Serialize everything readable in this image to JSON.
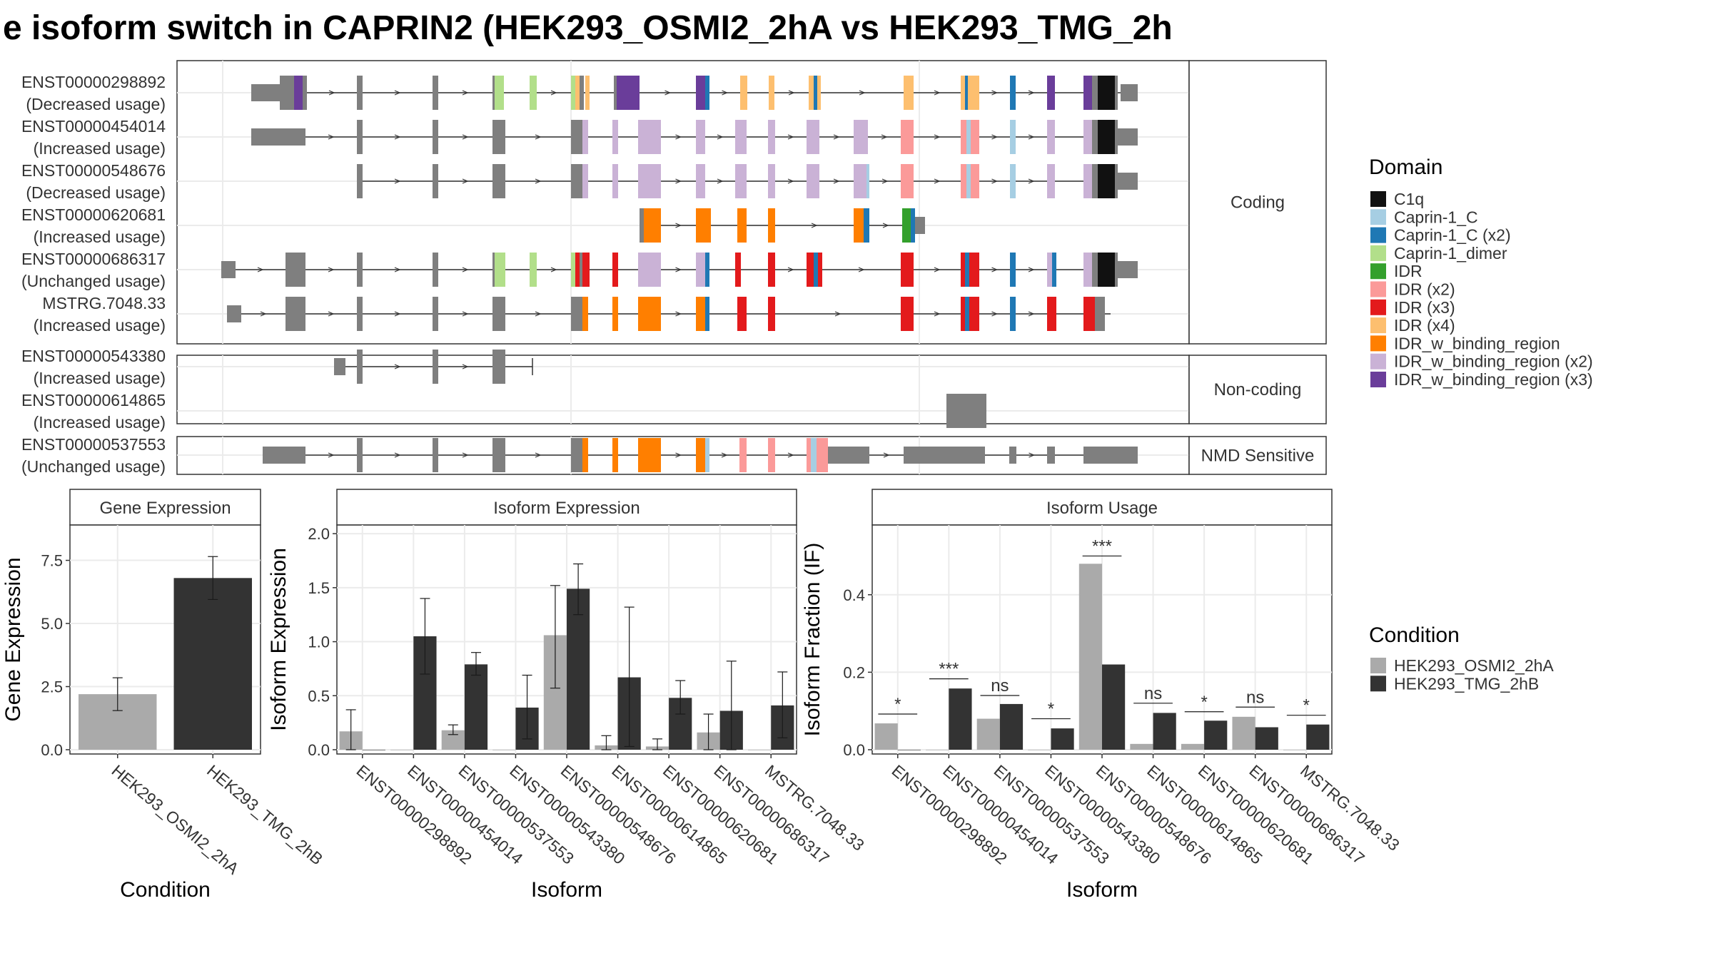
{
  "title": "e isoform switch in CAPRIN2 (HEK293_OSMI2_2hA vs HEK293_TMG_2h",
  "colors": {
    "exon_default": "#7f7f7f",
    "condition_a": "#aaaaaa",
    "condition_b": "#333333"
  },
  "gene_structure": {
    "groups": [
      {
        "label": "Coding",
        "isoforms": [
          {
            "id": "ENST00000298892",
            "usage": "(Decreased usage)"
          },
          {
            "id": "ENST00000454014",
            "usage": "(Increased usage)"
          },
          {
            "id": "ENST00000548676",
            "usage": "(Decreased usage)"
          },
          {
            "id": "ENST00000620681",
            "usage": "(Increased usage)"
          },
          {
            "id": "ENST00000686317",
            "usage": "(Unchanged usage)"
          },
          {
            "id": "MSTRG.7048.33",
            "usage": "(Increased usage)"
          }
        ]
      },
      {
        "label": "Non-coding",
        "isoforms": [
          {
            "id": "ENST00000543380",
            "usage": "(Increased usage)"
          },
          {
            "id": "ENST00000614865",
            "usage": "(Increased usage)"
          }
        ]
      },
      {
        "label": "NMD Sensitive",
        "isoforms": [
          {
            "id": "ENST00000537553",
            "usage": "(Unchanged usage)"
          }
        ]
      }
    ]
  },
  "domain_legend": {
    "title": "Domain",
    "items": [
      {
        "name": "C1q",
        "color": "#111111"
      },
      {
        "name": "Caprin-1_C",
        "color": "#a6cee3"
      },
      {
        "name": "Caprin-1_C (x2)",
        "color": "#1f78b4"
      },
      {
        "name": "Caprin-1_dimer",
        "color": "#b2df8a"
      },
      {
        "name": "IDR",
        "color": "#33a02c"
      },
      {
        "name": "IDR (x2)",
        "color": "#fb9a99"
      },
      {
        "name": "IDR (x3)",
        "color": "#e31a1c"
      },
      {
        "name": "IDR (x4)",
        "color": "#fdbf6f"
      },
      {
        "name": "IDR_w_binding_region",
        "color": "#ff7f00"
      },
      {
        "name": "IDR_w_binding_region (x2)",
        "color": "#cab2d6"
      },
      {
        "name": "IDR_w_binding_region (x3)",
        "color": "#6a3d9a"
      }
    ]
  },
  "condition_legend": {
    "title": "Condition",
    "items": [
      {
        "name": "HEK293_OSMI2_2hA",
        "color": "#aaaaaa"
      },
      {
        "name": "HEK293_TMG_2hB",
        "color": "#333333"
      }
    ]
  },
  "chart_data": [
    {
      "type": "bar",
      "panel_title": "Gene Expression",
      "xlabel": "Condition",
      "ylabel": "Gene Expression",
      "ylim": [
        0,
        8.9
      ],
      "yticks": [
        "0.0",
        "2.5",
        "5.0",
        "7.5"
      ],
      "categories": [
        "HEK293_OSMI2_2hA",
        "HEK293_TMG_2hB"
      ],
      "values": [
        2.2,
        6.8
      ],
      "error_low": [
        1.55,
        5.95
      ],
      "error_high": [
        2.85,
        7.65
      ]
    },
    {
      "type": "bar",
      "panel_title": "Isoform Expression",
      "xlabel": "Isoform",
      "ylabel": "Isoform Expression",
      "ylim": [
        0,
        2.08
      ],
      "yticks": [
        "0.0",
        "0.5",
        "1.0",
        "1.5",
        "2.0"
      ],
      "categories": [
        "ENST00000298892",
        "ENST00000454014",
        "ENST00000537553",
        "ENST00000543380",
        "ENST00000548676",
        "ENST00000614865",
        "ENST00000620681",
        "ENST00000686317",
        "MSTRG.7048.33"
      ],
      "series": [
        {
          "name": "HEK293_OSMI2_2hA",
          "values": [
            0.17,
            0.0,
            0.18,
            0.0,
            1.06,
            0.04,
            0.03,
            0.16,
            0.0
          ],
          "error_low": [
            0.0,
            0.0,
            0.14,
            0.0,
            0.57,
            0.0,
            0.0,
            0.0,
            0.0
          ],
          "error_high": [
            0.37,
            0.0,
            0.23,
            0.0,
            1.52,
            0.13,
            0.1,
            0.33,
            0.0
          ]
        },
        {
          "name": "HEK293_TMG_2hB",
          "values": [
            0.0,
            1.05,
            0.79,
            0.39,
            1.49,
            0.67,
            0.48,
            0.36,
            0.41
          ],
          "error_low": [
            0.0,
            0.7,
            0.69,
            0.1,
            1.25,
            0.03,
            0.33,
            0.0,
            0.11
          ],
          "error_high": [
            0.0,
            1.4,
            0.9,
            0.69,
            1.72,
            1.32,
            0.64,
            0.82,
            0.72
          ]
        }
      ]
    },
    {
      "type": "bar",
      "panel_title": "Isoform Usage",
      "xlabel": "Isoform",
      "ylabel": "Isoform Fraction (IF)",
      "ylim": [
        0,
        0.58
      ],
      "yticks": [
        "0.0",
        "0.2",
        "0.4"
      ],
      "categories": [
        "ENST00000298892",
        "ENST00000454014",
        "ENST00000537553",
        "ENST00000543380",
        "ENST00000548676",
        "ENST00000614865",
        "ENST00000620681",
        "ENST00000686317",
        "MSTRG.7048.33"
      ],
      "series": [
        {
          "name": "HEK293_OSMI2_2hA",
          "values": [
            0.068,
            0.0,
            0.08,
            0.0,
            0.48,
            0.015,
            0.015,
            0.085,
            0.0
          ]
        },
        {
          "name": "HEK293_TMG_2hB",
          "values": [
            0.0,
            0.158,
            0.118,
            0.055,
            0.22,
            0.095,
            0.075,
            0.058,
            0.065
          ]
        }
      ],
      "significance": [
        "*",
        "***",
        "ns",
        "*",
        "***",
        "ns",
        "*",
        "ns",
        "*"
      ],
      "significance_level": [
        0.092,
        0.183,
        0.14,
        0.08,
        0.5,
        0.12,
        0.098,
        0.11,
        0.089
      ]
    }
  ]
}
